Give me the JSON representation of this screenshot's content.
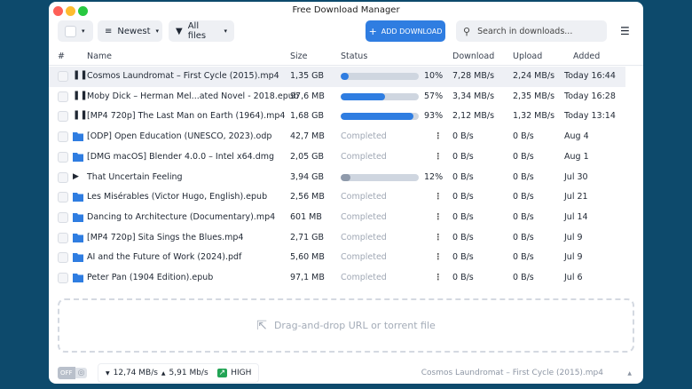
{
  "window": {
    "title": "Free Download Manager"
  },
  "toolbar": {
    "sort_label": "Newest",
    "filter_label": "All files",
    "add_label": "ADD DOWNLOAD",
    "search_placeholder": "Search in downloads..."
  },
  "columns": {
    "num": "#",
    "name": "Name",
    "size": "Size",
    "status": "Status",
    "download": "Download",
    "upload": "Upload",
    "added": "Added"
  },
  "colors": {
    "accent": "#2f7de1",
    "paused_bar": "#8f9aab"
  },
  "rows": [
    {
      "state": "paused",
      "name": "Cosmos Laundromat – First Cycle (2015).mp4",
      "size": "1,35 GB",
      "progress": 10,
      "percent": "10%",
      "download": "7,28 MB/s",
      "upload": "2,24 MB/s",
      "added": "Today 16:44",
      "selected": true
    },
    {
      "state": "paused",
      "name": "Moby Dick – Herman Mel...ated Novel - 2018.epub",
      "size": "97,6 MB",
      "progress": 57,
      "percent": "57%",
      "download": "3,34 MB/s",
      "upload": "2,35 MB/s",
      "added": "Today 16:28"
    },
    {
      "state": "paused",
      "name": "[MP4 720p] The Last Man on Earth (1964).mp4",
      "size": "1,68 GB",
      "progress": 93,
      "percent": "93%",
      "download": "2,12 MB/s",
      "upload": "1,32 MB/s",
      "added": "Today 13:14"
    },
    {
      "state": "completed",
      "name": "[ODP] Open Education (UNESCO, 2023).odp",
      "size": "42,7 MB",
      "status": "Completed",
      "download": "0 B/s",
      "upload": "0 B/s",
      "added": "Aug 4"
    },
    {
      "state": "completed",
      "name": "[DMG macOS] Blender 4.0.0 – Intel x64.dmg",
      "size": "2,05 GB",
      "status": "Completed",
      "download": "0 B/s",
      "upload": "0 B/s",
      "added": "Aug 1"
    },
    {
      "state": "stopped",
      "name": "That Uncertain Feeling",
      "size": "3,94 GB",
      "progress": 12,
      "percent": "12%",
      "download": "0 B/s",
      "upload": "0 B/s",
      "added": "Jul 30"
    },
    {
      "state": "completed",
      "name": "Les Misérables (Victor Hugo, English).epub",
      "size": "2,56 MB",
      "status": "Completed",
      "download": "0 B/s",
      "upload": "0 B/s",
      "added": "Jul 21"
    },
    {
      "state": "completed",
      "name": "Dancing to Architecture (Documentary).mp4",
      "size": "601 MB",
      "status": "Completed",
      "download": "0 B/s",
      "upload": "0 B/s",
      "added": "Jul 14"
    },
    {
      "state": "completed",
      "name": "[MP4 720p] Sita Sings the Blues.mp4",
      "size": "2,71 GB",
      "status": "Completed",
      "download": "0 B/s",
      "upload": "0 B/s",
      "added": "Jul 9"
    },
    {
      "state": "completed",
      "name": "AI and the Future of Work (2024).pdf",
      "size": "5,60 MB",
      "status": "Completed",
      "download": "0 B/s",
      "upload": "0 B/s",
      "added": "Jul 9"
    },
    {
      "state": "completed",
      "name": "Peter Pan (1904 Edition).epub",
      "size": "97,1 MB",
      "status": "Completed",
      "download": "0 B/s",
      "upload": "0 B/s",
      "added": "Jul 6"
    }
  ],
  "dropzone": {
    "label": "Drag-and-drop URL or torrent file"
  },
  "statusbar": {
    "toggle": "OFF",
    "down_speed": "12,74 MB/s",
    "up_speed": "5,91 Mb/s",
    "mode": "HIGH",
    "current_file": "Cosmos Laundromat – First Cycle (2015).mp4"
  }
}
